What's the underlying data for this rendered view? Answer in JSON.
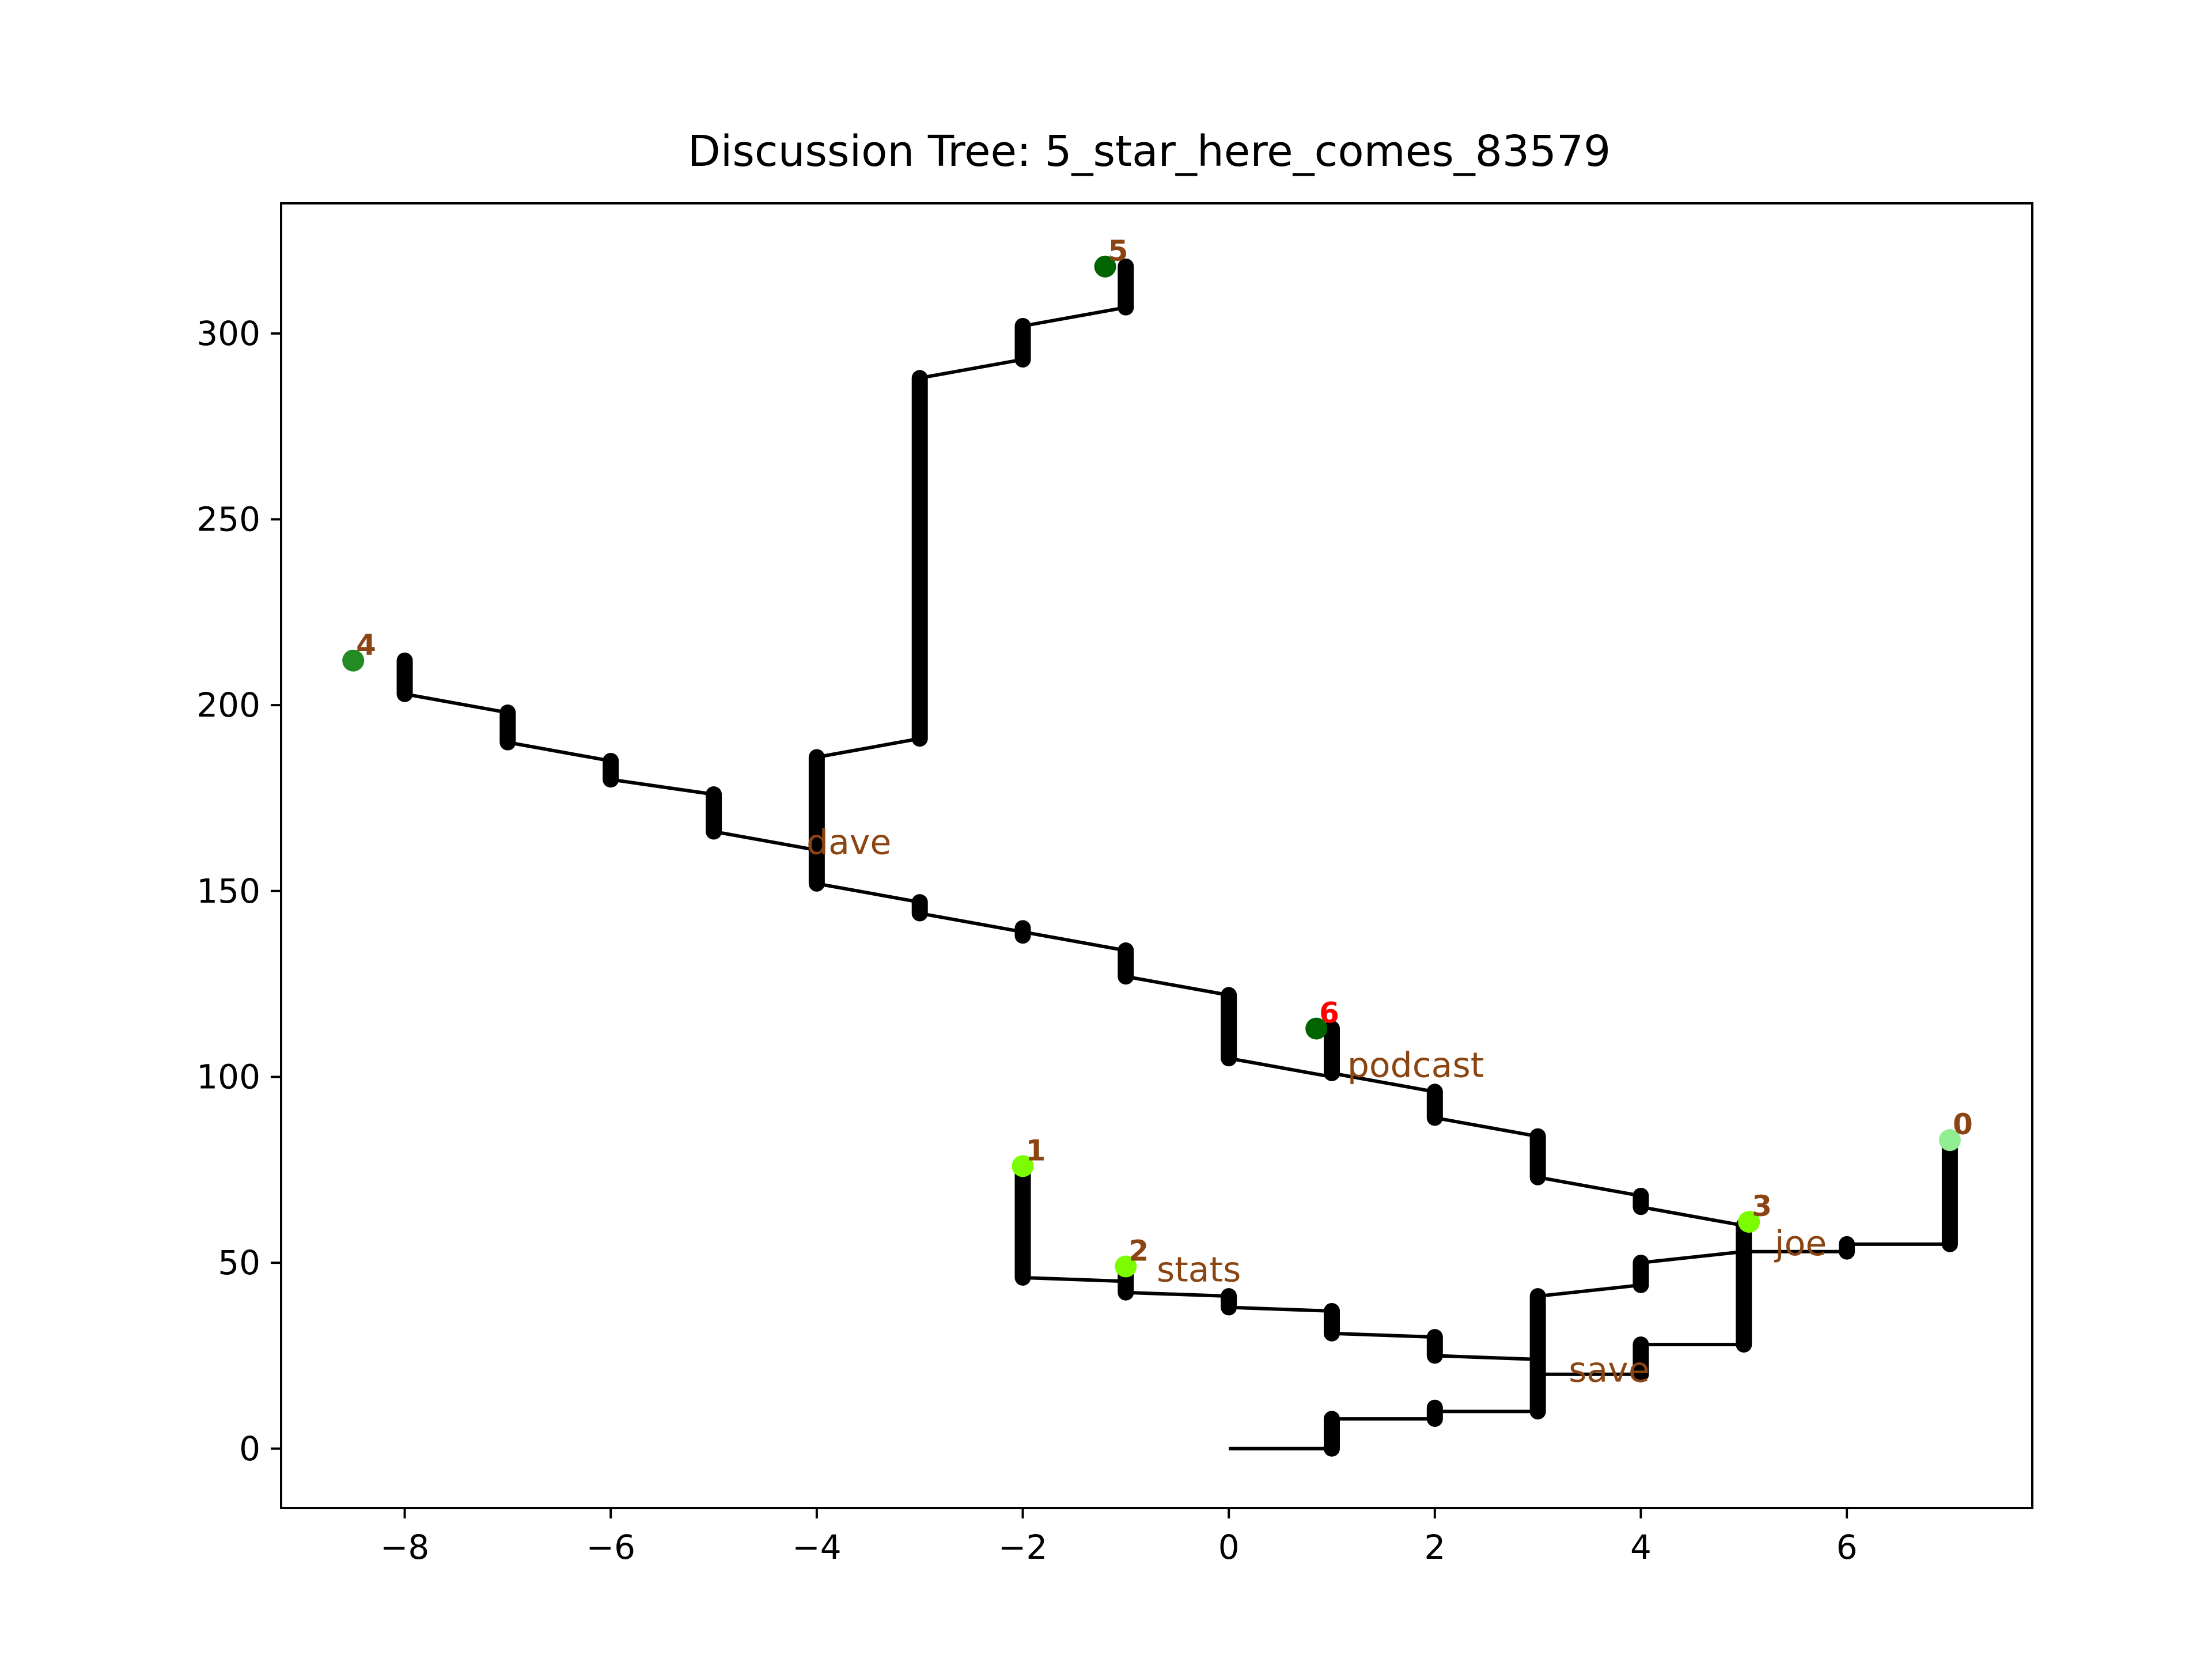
{
  "chart_data": {
    "type": "line",
    "title": "Discussion Tree: 5_star_here_comes_83579",
    "xlabel": "",
    "ylabel": "",
    "xlim": [
      -9.2,
      7.8
    ],
    "ylim": [
      -16,
      335
    ],
    "xticks": [
      -8,
      -6,
      -4,
      -2,
      0,
      2,
      4,
      6
    ],
    "yticks": [
      0,
      50,
      100,
      150,
      200,
      250,
      300
    ],
    "xtick_labels": [
      "−8",
      "−6",
      "−4",
      "−2",
      "0",
      "2",
      "4",
      "6"
    ],
    "ytick_labels": [
      "0",
      "50",
      "100",
      "150",
      "200",
      "250",
      "300"
    ],
    "grid": false,
    "colors": {
      "line": "#000000",
      "label": "#8B4513",
      "highlight_label": "#FF0000"
    },
    "edges": [
      [
        [
          0,
          0
        ],
        [
          1,
          0
        ]
      ],
      [
        [
          1,
          8
        ],
        [
          2,
          8
        ]
      ],
      [
        [
          2,
          10
        ],
        [
          3,
          10
        ]
      ],
      [
        [
          3,
          20
        ],
        [
          4,
          20
        ]
      ],
      [
        [
          4,
          28
        ],
        [
          5,
          28
        ]
      ],
      [
        [
          5,
          53
        ],
        [
          6,
          53
        ]
      ],
      [
        [
          6,
          55
        ],
        [
          7,
          55
        ]
      ],
      [
        [
          3,
          41
        ],
        [
          4,
          44
        ]
      ],
      [
        [
          4,
          50
        ],
        [
          5,
          53
        ]
      ],
      [
        [
          5,
          60
        ],
        [
          4,
          65
        ]
      ],
      [
        [
          4,
          68
        ],
        [
          3,
          73
        ]
      ],
      [
        [
          3,
          84
        ],
        [
          2,
          89
        ]
      ],
      [
        [
          2,
          96
        ],
        [
          1,
          101
        ]
      ],
      [
        [
          1,
          100
        ],
        [
          0,
          105
        ]
      ],
      [
        [
          0,
          122
        ],
        [
          -1,
          127
        ]
      ],
      [
        [
          -1,
          134
        ],
        [
          -2,
          139
        ]
      ],
      [
        [
          -2,
          139
        ],
        [
          -3,
          144
        ]
      ],
      [
        [
          -3,
          147
        ],
        [
          -4,
          152
        ]
      ],
      [
        [
          -4,
          161
        ],
        [
          -5,
          166
        ]
      ],
      [
        [
          -5,
          176
        ],
        [
          -6,
          180
        ]
      ],
      [
        [
          -6,
          185
        ],
        [
          -7,
          190
        ]
      ],
      [
        [
          -7,
          198
        ],
        [
          -8,
          203
        ]
      ],
      [
        [
          -4,
          186
        ],
        [
          -3,
          191
        ]
      ],
      [
        [
          -3,
          288
        ],
        [
          -2,
          293
        ]
      ],
      [
        [
          -2,
          302
        ],
        [
          -1,
          307
        ]
      ],
      [
        [
          3,
          24
        ],
        [
          2,
          25
        ]
      ],
      [
        [
          2,
          30
        ],
        [
          1,
          31
        ]
      ],
      [
        [
          1,
          37
        ],
        [
          0,
          38
        ]
      ],
      [
        [
          0,
          41
        ],
        [
          -1,
          42
        ]
      ],
      [
        [
          -1,
          45
        ],
        [
          -2,
          46
        ]
      ]
    ],
    "stems": [
      {
        "x": 1,
        "y0": 0,
        "y1": 8
      },
      {
        "x": 2,
        "y0": 8,
        "y1": 11
      },
      {
        "x": 3,
        "y0": 10,
        "y1": 41
      },
      {
        "x": 4,
        "y0": 20,
        "y1": 28
      },
      {
        "x": 4,
        "y0": 44,
        "y1": 50
      },
      {
        "x": 5,
        "y0": 28,
        "y1": 60
      },
      {
        "x": 6,
        "y0": 53,
        "y1": 55
      },
      {
        "x": 7,
        "y0": 55,
        "y1": 83
      },
      {
        "x": 4,
        "y0": 65,
        "y1": 68
      },
      {
        "x": 3,
        "y0": 73,
        "y1": 84
      },
      {
        "x": 2,
        "y0": 89,
        "y1": 96
      },
      {
        "x": 1,
        "y0": 101,
        "y1": 113
      },
      {
        "x": 0,
        "y0": 105,
        "y1": 122
      },
      {
        "x": -1,
        "y0": 127,
        "y1": 134
      },
      {
        "x": -2,
        "y0": 138,
        "y1": 140
      },
      {
        "x": -3,
        "y0": 144,
        "y1": 147
      },
      {
        "x": -4,
        "y0": 152,
        "y1": 186
      },
      {
        "x": -5,
        "y0": 166,
        "y1": 176
      },
      {
        "x": -6,
        "y0": 180,
        "y1": 185
      },
      {
        "x": -7,
        "y0": 190,
        "y1": 198
      },
      {
        "x": -8,
        "y0": 203,
        "y1": 212
      },
      {
        "x": -3,
        "y0": 191,
        "y1": 288
      },
      {
        "x": -2,
        "y0": 293,
        "y1": 302
      },
      {
        "x": -1,
        "y0": 307,
        "y1": 318
      },
      {
        "x": 0,
        "y0": 38,
        "y1": 41
      },
      {
        "x": 1,
        "y0": 31,
        "y1": 37
      },
      {
        "x": 2,
        "y0": 25,
        "y1": 30
      },
      {
        "x": -1,
        "y0": 42,
        "y1": 48
      },
      {
        "x": -2,
        "y0": 46,
        "y1": 76
      }
    ],
    "nodes": [
      {
        "label": "0",
        "x": 7.0,
        "y": 83,
        "color": "#90EE90",
        "label_color": "#8B4513"
      },
      {
        "label": "1",
        "x": -2.0,
        "y": 76,
        "color": "#7CFC00",
        "label_color": "#8B4513"
      },
      {
        "label": "2",
        "x": -1.0,
        "y": 49,
        "color": "#7CFC00",
        "label_color": "#8B4513"
      },
      {
        "label": "3",
        "x": 5.05,
        "y": 61,
        "color": "#7CFC00",
        "label_color": "#8B4513"
      },
      {
        "label": "4",
        "x": -8.5,
        "y": 212,
        "color": "#228B22",
        "label_color": "#8B4513"
      },
      {
        "label": "5",
        "x": -1.2,
        "y": 318,
        "color": "#006400",
        "label_color": "#8B4513"
      },
      {
        "label": "6",
        "x": 0.85,
        "y": 113,
        "color": "#006400",
        "label_color": "#FF0000"
      }
    ],
    "annotations": [
      {
        "text": "dave",
        "x": -4.1,
        "y": 160
      },
      {
        "text": "podcast",
        "x": 1.15,
        "y": 100
      },
      {
        "text": "stats",
        "x": -0.7,
        "y": 45
      },
      {
        "text": "joe",
        "x": 5.3,
        "y": 52
      },
      {
        "text": "save",
        "x": 3.3,
        "y": 18
      }
    ]
  }
}
